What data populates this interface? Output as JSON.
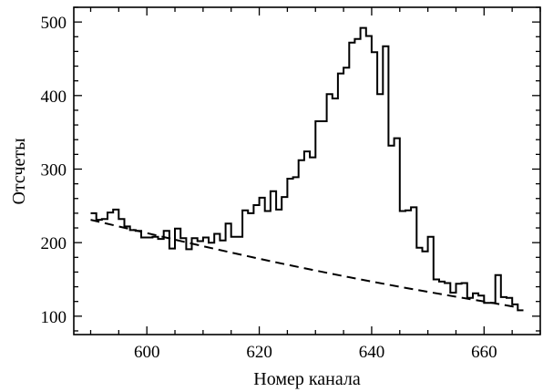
{
  "chart_data": {
    "type": "line",
    "title": "",
    "xlabel": "Номер канала",
    "ylabel": "Отсчеты",
    "xlim": [
      587,
      670
    ],
    "ylim": [
      75,
      520
    ],
    "xticks": [
      600,
      620,
      640,
      660
    ],
    "yticks": [
      100,
      200,
      300,
      400,
      500
    ],
    "grid": false,
    "legend": "none",
    "series": [
      {
        "style": "step",
        "x": [
          590,
          591,
          592,
          593,
          594,
          595,
          596,
          597,
          598,
          599,
          600,
          601,
          602,
          603,
          604,
          605,
          606,
          607,
          608,
          609,
          610,
          611,
          612,
          613,
          614,
          615,
          616,
          617,
          618,
          619,
          620,
          621,
          622,
          623,
          624,
          625,
          626,
          627,
          628,
          629,
          630,
          631,
          632,
          633,
          634,
          635,
          636,
          637,
          638,
          639,
          640,
          641,
          642,
          643,
          644,
          645,
          646,
          647,
          648,
          649,
          650,
          651,
          652,
          653,
          654,
          655,
          656,
          657,
          658,
          659,
          660,
          661,
          662,
          663,
          664,
          665,
          666
        ],
        "y": [
          240,
          231,
          232,
          241,
          245,
          232,
          222,
          217,
          216,
          207,
          207,
          208,
          205,
          216,
          192,
          219,
          206,
          191,
          206,
          202,
          207,
          200,
          212,
          203,
          226,
          208,
          208,
          244,
          240,
          251,
          261,
          243,
          270,
          245,
          262,
          287,
          289,
          312,
          324,
          316,
          365,
          365,
          402,
          396,
          430,
          438,
          472,
          477,
          492,
          481,
          459,
          402,
          467,
          332,
          342,
          243,
          244,
          248,
          193,
          188,
          208,
          150,
          147,
          145,
          132,
          144,
          145,
          125,
          131,
          128,
          118,
          118,
          156,
          126,
          125,
          116,
          108
        ]
      },
      {
        "style": "dashed",
        "x": [
          590,
          600,
          610,
          620,
          630,
          640,
          650,
          660,
          666
        ],
        "y": [
          231,
          213,
          195,
          178,
          162,
          147,
          133,
          120,
          112
        ]
      }
    ]
  }
}
